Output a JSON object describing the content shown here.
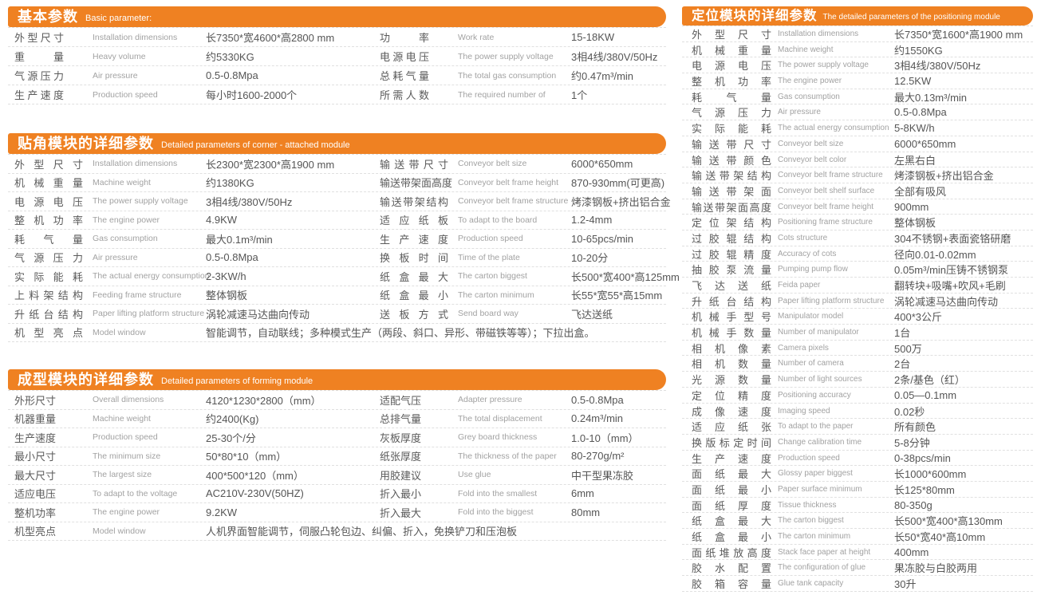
{
  "accent_color": "#ef8122",
  "text_color": "#5a5a5a",
  "secondary_text_color": "#a2a2a2",
  "sections": [
    {
      "title_cn": "基本参数",
      "title_en": "Basic parameter:",
      "left": [
        {
          "cn": "外型尺寸",
          "en": "Installation dimensions",
          "val": "长7350*宽4600*高2800 mm"
        },
        {
          "cn": "重量",
          "en": "Heavy volume",
          "val": "约5330KG"
        },
        {
          "cn": "气源压力",
          "en": "Air pressure",
          "val": "0.5-0.8Mpa"
        },
        {
          "cn": "生产速度",
          "en": "Production speed",
          "val": "每小时1600-2000个"
        }
      ],
      "right": [
        {
          "cn": "功率",
          "en": "Work rate",
          "val": "15-18KW"
        },
        {
          "cn": "电源电压",
          "en": "The power supply voltage",
          "val": "3相4线/380V/50Hz"
        },
        {
          "cn": "总耗气量",
          "en": "The total gas consumption",
          "val": "约0.47m³/min"
        },
        {
          "cn": "所需人数",
          "en": "The required number of",
          "val": "1个"
        }
      ],
      "full": []
    },
    {
      "title_cn": "贴角模块的详细参数",
      "title_en": "Detailed parameters of corner - attached module",
      "left": [
        {
          "cn": "外型尺寸",
          "en": "Installation dimensions",
          "val": "长2300*宽2300*高1900 mm"
        },
        {
          "cn": "机械重量",
          "en": "Machine weight",
          "val": "约1380KG"
        },
        {
          "cn": "电源电压",
          "en": "The power supply voltage",
          "val": "3相4线/380V/50Hz"
        },
        {
          "cn": "整机功率",
          "en": "The engine power",
          "val": "4.9KW"
        },
        {
          "cn": "耗气量",
          "en": "Gas consumption",
          "val": "最大0.1m³/min"
        },
        {
          "cn": "气源压力",
          "en": "Air pressure",
          "val": "0.5-0.8Mpa"
        },
        {
          "cn": "实际能耗",
          "en": "The actual energy consumption",
          "val": "2-3KW/h"
        },
        {
          "cn": "上料架结构",
          "en": "Feeding frame structure",
          "val": "整体钢板"
        },
        {
          "cn": "升纸台结构",
          "en": "Paper lifting platform structure",
          "val": "涡轮减速马达曲向传动"
        }
      ],
      "right": [
        {
          "cn": "输送带尺寸",
          "en": "Conveyor belt size",
          "val": "6000*650mm"
        },
        {
          "cn": "输送带架面高度",
          "en": "Conveyor belt frame height",
          "val": "870-930mm(可更高)"
        },
        {
          "cn": "输送带架结构",
          "en": "Conveyor belt frame structure",
          "val": "烤漆钢板+挤出铝合金"
        },
        {
          "cn": "适应纸板",
          "en": "To adapt to the board",
          "val": "1.2-4mm"
        },
        {
          "cn": "生产速度",
          "en": "Production speed",
          "val": "10-65pcs/min"
        },
        {
          "cn": "换板时间",
          "en": "Time of the plate",
          "val": "10-20分"
        },
        {
          "cn": "纸盒最大",
          "en": "The carton biggest",
          "val": "长500*宽400*高125mm"
        },
        {
          "cn": "纸盒最小",
          "en": "The carton minimum",
          "val": "长55*宽55*高15mm"
        },
        {
          "cn": "送板方式",
          "en": "Send board way",
          "val": "飞达送纸"
        }
      ],
      "full": [
        {
          "cn": "机型亮点",
          "en": "Model window",
          "val": "智能调节，自动联线；多种模式生产（两段、斜口、异形、带磁铁等等）；下拉出盒。"
        }
      ]
    },
    {
      "title_cn": "成型模块的详细参数",
      "title_en": "Detailed parameters of forming module",
      "left": [
        {
          "cn": "外形尺寸",
          "en": "Overall dimensions",
          "val": "4120*1230*2800（mm）"
        },
        {
          "cn": "机器重量",
          "en": "Machine weight",
          "val": "约2400(Kg)"
        },
        {
          "cn": "生产速度",
          "en": "Production speed",
          "val": "25-30个/分"
        },
        {
          "cn": "最小尺寸",
          "en": "The minimum size",
          "val": "50*80*10（mm）"
        },
        {
          "cn": "最大尺寸",
          "en": "The largest size",
          "val": "400*500*120（mm）"
        },
        {
          "cn": "适应电压",
          "en": "To adapt to the voltage",
          "val": "AC210V-230V(50HZ)"
        },
        {
          "cn": "整机功率",
          "en": "The engine power",
          "val": "9.2KW"
        }
      ],
      "right": [
        {
          "cn": "适配气压",
          "en": "Adapter pressure",
          "val": "0.5-0.8Mpa"
        },
        {
          "cn": "总排气量",
          "en": "The total displacement",
          "val": "0.24m³/min"
        },
        {
          "cn": "灰板厚度",
          "en": "Grey board thickness",
          "val": "1.0-10（mm）"
        },
        {
          "cn": "纸张厚度",
          "en": "The thickness of the paper",
          "val": "80-270g/m²"
        },
        {
          "cn": "用胶建议",
          "en": "Use glue",
          "val": "中干型果冻胶"
        },
        {
          "cn": "折入最小",
          "en": "Fold into the smallest",
          "val": "6mm"
        },
        {
          "cn": "折入最大",
          "en": "Fold into the biggest",
          "val": "80mm"
        }
      ],
      "full": [
        {
          "cn": "机型亮点",
          "en": "Model window",
          "val": "人机界面智能调节，伺服凸轮包边、纠偏、折入，免换铲刀和压泡板"
        }
      ]
    },
    {
      "title_cn": "定位模块的详细参数",
      "title_en": "The detailed parameters of the positioning module",
      "rows": [
        {
          "cn": "外型尺寸",
          "en": "Installation dimensions",
          "val": "长7350*宽1600*高1900 mm"
        },
        {
          "cn": "机械重量",
          "en": "Machine weight",
          "val": "约1550KG"
        },
        {
          "cn": "电源电压",
          "en": "The power supply voltage",
          "val": "3相4线/380V/50Hz"
        },
        {
          "cn": "整机功率",
          "en": "The engine power",
          "val": "12.5KW"
        },
        {
          "cn": "耗气量",
          "en": "Gas consumption",
          "val": "最大0.13m³/min"
        },
        {
          "cn": "气源压力",
          "en": "Air pressure",
          "val": "0.5-0.8Mpa"
        },
        {
          "cn": "实际能耗",
          "en": "The actual energy consumption",
          "val": "5-8KW/h"
        },
        {
          "cn": "输送带尺寸",
          "en": "Conveyor belt size",
          "val": "6000*650mm"
        },
        {
          "cn": "输送带颜色",
          "en": "Conveyor belt color",
          "val": "左黑右白"
        },
        {
          "cn": "输送带架结构",
          "en": "Conveyor belt frame structure",
          "val": "烤漆钢板+挤出铝合金"
        },
        {
          "cn": "输送带架面",
          "en": "Conveyor belt shelf surface",
          "val": "全部有吸风"
        },
        {
          "cn": "输送带架面高度",
          "en": "Conveyor belt frame height",
          "val": "900mm"
        },
        {
          "cn": "定位架结构",
          "en": "Positioning frame structure",
          "val": "整体钢板"
        },
        {
          "cn": "过胶辊结构",
          "en": "Cots structure",
          "val": "304不锈钢+表面瓷铬研磨"
        },
        {
          "cn": "过胶辊精度",
          "en": "Accuracy of cots",
          "val": "径向0.01-0.02mm"
        },
        {
          "cn": "抽胶泵流量",
          "en": "Pumping pump flow",
          "val": "0.05m³/min压铸不锈钢泵"
        },
        {
          "cn": "飞达送纸",
          "en": "Feida paper",
          "val": "翻转块+吸嘴+吹风+毛刷"
        },
        {
          "cn": "升纸台结构",
          "en": "Paper lifting platform structure",
          "val": "涡轮减速马达曲向传动"
        },
        {
          "cn": "机械手型号",
          "en": "Manipulator model",
          "val": "400*3公斤"
        },
        {
          "cn": "机械手数量",
          "en": "Number of manipulator",
          "val": "1台"
        },
        {
          "cn": "相机像素",
          "en": "Camera pixels",
          "val": "500万"
        },
        {
          "cn": "相机数量",
          "en": "Number of camera",
          "val": "2台"
        },
        {
          "cn": "光源数量",
          "en": "Number of light sources",
          "val": "2条/基色（红）"
        },
        {
          "cn": "定位精度",
          "en": "Positioning accuracy",
          "val": "0.05—0.1mm"
        },
        {
          "cn": "成像速度",
          "en": "Imaging speed",
          "val": "0.02秒"
        },
        {
          "cn": "适应纸张",
          "en": "To adapt to the paper",
          "val": "所有颜色"
        },
        {
          "cn": "换版标定时间",
          "en": "Change calibration time",
          "val": "5-8分钟"
        },
        {
          "cn": "生产速度",
          "en": "Production speed",
          "val": "0-38pcs/min"
        },
        {
          "cn": "面纸最大",
          "en": "Glossy paper biggest",
          "val": "长1000*600mm"
        },
        {
          "cn": "面纸最小",
          "en": "Paper surface minimum",
          "val": "长125*80mm"
        },
        {
          "cn": "面纸厚度",
          "en": "Tissue thickness",
          "val": "80-350g"
        },
        {
          "cn": "纸盒最大",
          "en": "The carton biggest",
          "val": "长500*宽400*高130mm"
        },
        {
          "cn": "纸盒最小",
          "en": "The carton minimum",
          "val": "长50*宽40*高10mm"
        },
        {
          "cn": "面纸堆放高度",
          "en": "Stack face paper at height",
          "val": "400mm"
        },
        {
          "cn": "胶水配置",
          "en": "The configuration of glue",
          "val": "果冻胶与白胶两用"
        },
        {
          "cn": "胶箱容量",
          "en": "Glue tank capacity",
          "val": "30升"
        }
      ]
    }
  ]
}
